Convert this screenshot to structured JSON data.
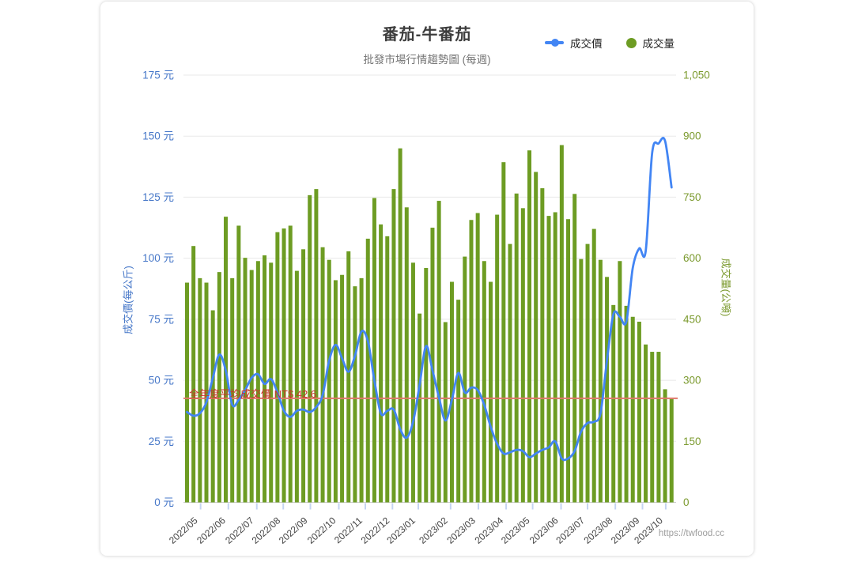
{
  "page": {
    "watermark": "https://twfood.cc"
  },
  "header": {
    "title": "番茄-牛番茄",
    "subtitle": "批發市場行情趨勢圖 (每週)"
  },
  "legend": {
    "price_label": "成交價",
    "volume_label": "成交量",
    "price_color": "#4285f4",
    "volume_color": "#6d9c23"
  },
  "chart_data": {
    "type": "line+bar combo, weekly",
    "x_tick_labels": [
      "2022/05",
      "2022/06",
      "2022/07",
      "2022/08",
      "2022/09",
      "2022/10",
      "2022/11",
      "2022/12",
      "2023/01",
      "2023/02",
      "2023/03",
      "2023/04",
      "2023/05",
      "2023/06",
      "2023/07",
      "2023/08",
      "2023/09",
      "2023/10"
    ],
    "x_tick_week_index": [
      2.1,
      6.4,
      10.8,
      14.9,
      19.1,
      23.5,
      27.6,
      31.8,
      35.8,
      40.8,
      45.1,
      49.4,
      53.5,
      57.9,
      62.0,
      66.3,
      70.5,
      74.1
    ],
    "left_axis": {
      "title": "成交價(每公斤)",
      "tick_labels": [
        "0 元",
        "25 元",
        "50 元",
        "75 元",
        "100 元",
        "125 元",
        "150 元",
        "175 元"
      ],
      "min": 0,
      "max": 175,
      "color": "#4677c8",
      "grid": true
    },
    "right_axis": {
      "title": "成交量(公噸)",
      "tick_labels": [
        "0",
        "150",
        "300",
        "450",
        "600",
        "750",
        "900",
        "1,050"
      ],
      "min": 0,
      "max": 1050,
      "color": "#7b9a2e",
      "grid": false
    },
    "annotation": {
      "label": "全年度平均成交價 NT$ 42.6",
      "value": 42.6,
      "line_color": "#e0796b",
      "text_color": "#cc342b"
    },
    "series": [
      {
        "name": "成交價",
        "type": "line",
        "axis": "left",
        "unit": "元/公斤",
        "color": "#4285f4",
        "values": [
          37,
          35.5,
          36.5,
          41,
          51,
          60.5,
          54,
          40,
          42,
          46,
          51,
          52.5,
          48.5,
          50.5,
          45,
          37.5,
          35,
          37.5,
          38,
          37,
          39,
          44,
          58,
          64.5,
          59,
          53.5,
          60,
          70,
          66,
          50,
          36.5,
          37.5,
          38,
          30,
          26.5,
          33,
          48,
          64,
          54,
          43,
          33.5,
          42,
          53,
          45,
          47,
          46,
          40,
          31,
          24,
          20,
          20.5,
          21.5,
          21,
          18.5,
          20,
          21.5,
          22.5,
          25,
          18,
          18,
          21,
          29,
          32.5,
          33,
          36.5,
          58,
          77,
          76,
          74,
          96,
          104,
          103,
          143,
          147,
          148,
          129
        ]
      },
      {
        "name": "成交量",
        "type": "bar",
        "axis": "right",
        "unit": "公噸",
        "color": "#6d9c23",
        "values": [
          540,
          630,
          551,
          540,
          472,
          566,
          702,
          551,
          680,
          601,
          571,
          593,
          607,
          589,
          664,
          673,
          680,
          569,
          622,
          755,
          770,
          627,
          596,
          546,
          559,
          617,
          531,
          551,
          648,
          748,
          683,
          654,
          770,
          870,
          725,
          589,
          464,
          576,
          675,
          741,
          443,
          542,
          498,
          604,
          694,
          711,
          593,
          542,
          707,
          836,
          635,
          759,
          723,
          865,
          812,
          772,
          704,
          713,
          878,
          696,
          758,
          598,
          635,
          672,
          596,
          554,
          485,
          593,
          483,
          456,
          444,
          388,
          370,
          370,
          278,
          254
        ]
      }
    ]
  }
}
